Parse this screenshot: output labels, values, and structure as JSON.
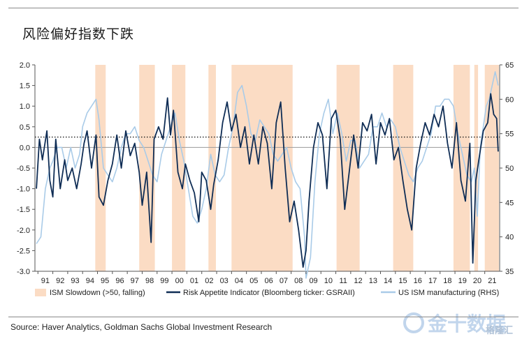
{
  "page": {
    "title": "风险偏好指数下跌",
    "source": "Source: Haver Analytics, Goldman Sachs Global Investment Research",
    "watermark": {
      "brand": "金十数据",
      "sub": "格隆汇"
    }
  },
  "chart_data": {
    "type": "line",
    "title": "风险偏好指数下跌",
    "x_ticks": [
      "91",
      "92",
      "93",
      "94",
      "95",
      "96",
      "97",
      "98",
      "99",
      "00",
      "01",
      "02",
      "03",
      "04",
      "05",
      "06",
      "07",
      "08",
      "09",
      "10",
      "11",
      "12",
      "13",
      "14",
      "15",
      "16",
      "17",
      "18",
      "19",
      "20",
      "21"
    ],
    "x_range": [
      1990.8,
      2022.0
    ],
    "y_left": {
      "range": [
        -3.0,
        2.0
      ],
      "ticks": [
        "2.0",
        "1.5",
        "1.0",
        "0.5",
        "0.0",
        "-0.5",
        "-1.0",
        "-1.5",
        "-2.0",
        "-2.5",
        "-3.0"
      ],
      "tick_values": [
        2.0,
        1.5,
        1.0,
        0.5,
        0.0,
        -0.5,
        -1.0,
        -1.5,
        -2.0,
        -2.5,
        -3.0
      ]
    },
    "y_right": {
      "range": [
        35,
        65
      ],
      "ticks": [
        "65",
        "60",
        "55",
        "50",
        "45",
        "40",
        "35"
      ],
      "tick_values": [
        65,
        60,
        55,
        50,
        45,
        40,
        35
      ]
    },
    "reference_lines": [
      {
        "axis": "left",
        "value": 0.0,
        "style": "solid"
      },
      {
        "axis": "left",
        "value": 0.25,
        "style": "dotted"
      }
    ],
    "shaded_periods": [
      [
        1994.85,
        1995.55
      ],
      [
        1997.8,
        1998.85
      ],
      [
        2000.0,
        2000.9
      ],
      [
        2002.45,
        2002.95
      ],
      [
        2004.0,
        2008.1
      ],
      [
        2011.05,
        2012.6
      ],
      [
        2014.85,
        2016.2
      ],
      [
        2018.9,
        2020.0
      ],
      [
        2020.3,
        2020.55
      ],
      [
        2021.0,
        2021.95
      ]
    ],
    "series": [
      {
        "name": "US ISM manufacturing (RHS)",
        "axis": "right",
        "color": "#a9cbe8",
        "x": [
          1990.9,
          1991.2,
          1991.5,
          1991.8,
          1992.0,
          1992.3,
          1992.6,
          1992.9,
          1993.2,
          1993.5,
          1993.8,
          1994.0,
          1994.3,
          1994.6,
          1994.9,
          1995.1,
          1995.4,
          1995.7,
          1996.0,
          1996.3,
          1996.6,
          1996.9,
          1997.2,
          1997.5,
          1997.8,
          1998.1,
          1998.4,
          1998.7,
          1999.0,
          1999.3,
          1999.6,
          1999.9,
          2000.2,
          2000.5,
          2000.8,
          2001.1,
          2001.4,
          2001.7,
          2002.0,
          2002.3,
          2002.6,
          2002.9,
          2003.2,
          2003.5,
          2003.8,
          2004.1,
          2004.4,
          2004.7,
          2005.0,
          2005.3,
          2005.6,
          2005.9,
          2006.2,
          2006.5,
          2006.8,
          2007.1,
          2007.4,
          2007.7,
          2008.0,
          2008.3,
          2008.6,
          2008.9,
          2009.0,
          2009.3,
          2009.6,
          2009.9,
          2010.2,
          2010.5,
          2010.8,
          2011.1,
          2011.4,
          2011.7,
          2012.0,
          2012.3,
          2012.6,
          2012.9,
          2013.2,
          2013.5,
          2013.8,
          2014.1,
          2014.4,
          2014.7,
          2015.0,
          2015.3,
          2015.6,
          2015.9,
          2016.2,
          2016.5,
          2016.8,
          2017.1,
          2017.4,
          2017.7,
          2018.0,
          2018.3,
          2018.6,
          2018.9,
          2019.2,
          2019.5,
          2019.8,
          2020.1,
          2020.3,
          2020.5,
          2020.7,
          2020.9,
          2021.1,
          2021.3,
          2021.5,
          2021.7,
          2021.9
        ],
        "y": [
          39,
          40,
          47,
          50,
          51,
          53,
          53,
          50,
          53,
          50,
          52,
          56,
          58,
          59,
          60,
          57,
          50,
          49,
          48,
          50,
          53,
          55,
          55,
          56,
          54,
          53,
          51,
          49,
          48,
          52,
          54,
          56,
          58,
          54,
          51,
          47,
          43,
          42,
          44,
          47,
          52,
          49,
          48,
          49,
          53,
          56,
          61,
          62,
          59,
          55,
          54,
          57,
          56,
          55,
          52,
          51,
          52,
          53,
          50,
          48,
          47,
          40,
          34,
          37,
          48,
          55,
          58,
          60,
          55,
          58,
          55,
          51,
          54,
          54,
          50,
          51,
          52,
          56,
          56,
          58,
          56,
          57,
          56,
          53,
          51,
          49,
          48,
          50,
          51,
          53,
          55,
          59,
          59,
          60,
          60,
          59,
          55,
          52,
          49,
          48,
          50,
          43,
          53,
          56,
          59,
          60,
          62,
          64,
          62
        ]
      },
      {
        "name": "Risk Appetite Indicator (Bloomberg ticker: GSRAII)",
        "axis": "left",
        "color": "#0f2d55",
        "x": [
          1990.9,
          1991.1,
          1991.3,
          1991.6,
          1991.8,
          1992.0,
          1992.2,
          1992.5,
          1992.8,
          1993.0,
          1993.3,
          1993.6,
          1993.9,
          1994.1,
          1994.3,
          1994.6,
          1994.9,
          1995.1,
          1995.4,
          1995.7,
          1996.0,
          1996.3,
          1996.6,
          1996.9,
          1997.2,
          1997.5,
          1997.8,
          1998.0,
          1998.3,
          1998.6,
          1998.8,
          1999.1,
          1999.4,
          1999.7,
          1999.9,
          2000.1,
          2000.4,
          2000.7,
          2000.9,
          2001.2,
          2001.5,
          2001.8,
          2002.0,
          2002.3,
          2002.6,
          2002.8,
          2003.1,
          2003.4,
          2003.7,
          2004.0,
          2004.3,
          2004.6,
          2004.9,
          2005.2,
          2005.5,
          2005.8,
          2006.1,
          2006.4,
          2006.7,
          2007.0,
          2007.3,
          2007.6,
          2007.9,
          2008.2,
          2008.5,
          2008.8,
          2009.0,
          2009.2,
          2009.5,
          2009.8,
          2010.1,
          2010.4,
          2010.7,
          2011.0,
          2011.3,
          2011.6,
          2011.9,
          2012.2,
          2012.5,
          2012.8,
          2013.1,
          2013.4,
          2013.7,
          2014.0,
          2014.3,
          2014.6,
          2014.9,
          2015.2,
          2015.5,
          2015.8,
          2016.1,
          2016.4,
          2016.7,
          2017.0,
          2017.3,
          2017.6,
          2017.9,
          2018.2,
          2018.5,
          2018.8,
          2019.1,
          2019.4,
          2019.7,
          2020.0,
          2020.2,
          2020.4,
          2020.6,
          2020.9,
          2021.2,
          2021.4,
          2021.6,
          2021.8,
          2021.9
        ],
        "y": [
          -1.0,
          0.2,
          -0.3,
          0.4,
          -0.8,
          -1.2,
          0.2,
          -1.0,
          -0.3,
          -0.8,
          -0.5,
          -1.0,
          -0.4,
          0.1,
          0.4,
          -0.5,
          0.3,
          -1.2,
          -1.4,
          -0.8,
          -0.4,
          0.3,
          -0.5,
          0.4,
          -0.2,
          0.1,
          -0.6,
          -1.4,
          -0.6,
          -2.3,
          0.2,
          0.5,
          0.2,
          1.2,
          0.3,
          0.9,
          -0.6,
          -1.0,
          -0.4,
          -0.8,
          -1.1,
          -1.8,
          -0.6,
          -0.8,
          -1.5,
          -0.9,
          -0.3,
          0.6,
          1.1,
          0.4,
          0.8,
          0.0,
          0.5,
          -0.4,
          0.3,
          -0.4,
          0.5,
          0.1,
          -1.0,
          0.6,
          1.1,
          -0.5,
          -1.8,
          -1.3,
          -2.0,
          -2.9,
          -2.5,
          -1.3,
          0.0,
          0.6,
          0.3,
          -1.0,
          0.7,
          0.9,
          0.2,
          -1.5,
          -0.6,
          0.3,
          -0.5,
          0.6,
          0.4,
          0.8,
          -0.4,
          0.6,
          0.3,
          0.7,
          -0.3,
          0.0,
          -0.8,
          -1.5,
          -2.0,
          -0.5,
          0.1,
          0.6,
          0.3,
          0.8,
          0.5,
          1.0,
          0.1,
          -0.5,
          0.6,
          -0.8,
          -1.3,
          0.1,
          -2.8,
          -0.8,
          -0.3,
          0.4,
          0.6,
          1.3,
          0.8,
          0.7,
          -0.1
        ]
      }
    ],
    "legend": [
      "ISM Slowdown (>50, falling)",
      "Risk Appetite Indicator (Bloomberg ticker: GSRAII)",
      "US ISM manufacturing (RHS)"
    ],
    "colors": {
      "shade": "#fbdcc4",
      "risk": "#0f2d55",
      "ism": "#a9cbe8",
      "zero_line": "#9a9a9a"
    }
  }
}
